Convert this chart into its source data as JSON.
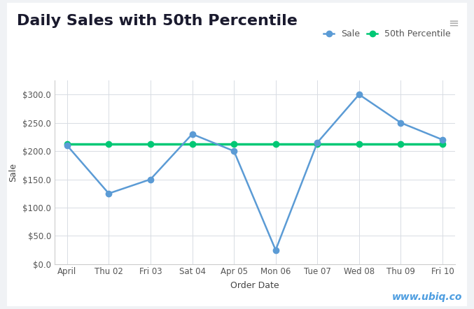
{
  "title": "Daily Sales with 50th Percentile",
  "xlabel": "Order Date",
  "ylabel": "Sale",
  "x_labels": [
    "April",
    "Thu 02",
    "Fri 03",
    "Sat 04",
    "Apr 05",
    "Mon 06",
    "Tue 07",
    "Wed 08",
    "Thu 09",
    "Fri 10"
  ],
  "sale_values": [
    210,
    125,
    150,
    230,
    200,
    25,
    215,
    300,
    250,
    220
  ],
  "percentile_value": 213,
  "sale_color": "#5b9bd5",
  "percentile_color": "#00c875",
  "background_color": "#f0f2f5",
  "plot_bg_color": "#ffffff",
  "card_bg_color": "#ffffff",
  "grid_color": "#d8dce3",
  "ylim": [
    0,
    325
  ],
  "yticks": [
    0,
    50,
    100,
    150,
    200,
    250,
    300
  ],
  "legend_sale": "Sale",
  "legend_percentile": "50th Percentile",
  "watermark": "www.ubiq.co",
  "watermark_color": "#4d9de0",
  "title_fontsize": 16,
  "axis_label_fontsize": 9,
  "tick_fontsize": 8.5,
  "legend_fontsize": 9,
  "marker_size": 6,
  "line_width": 1.8
}
